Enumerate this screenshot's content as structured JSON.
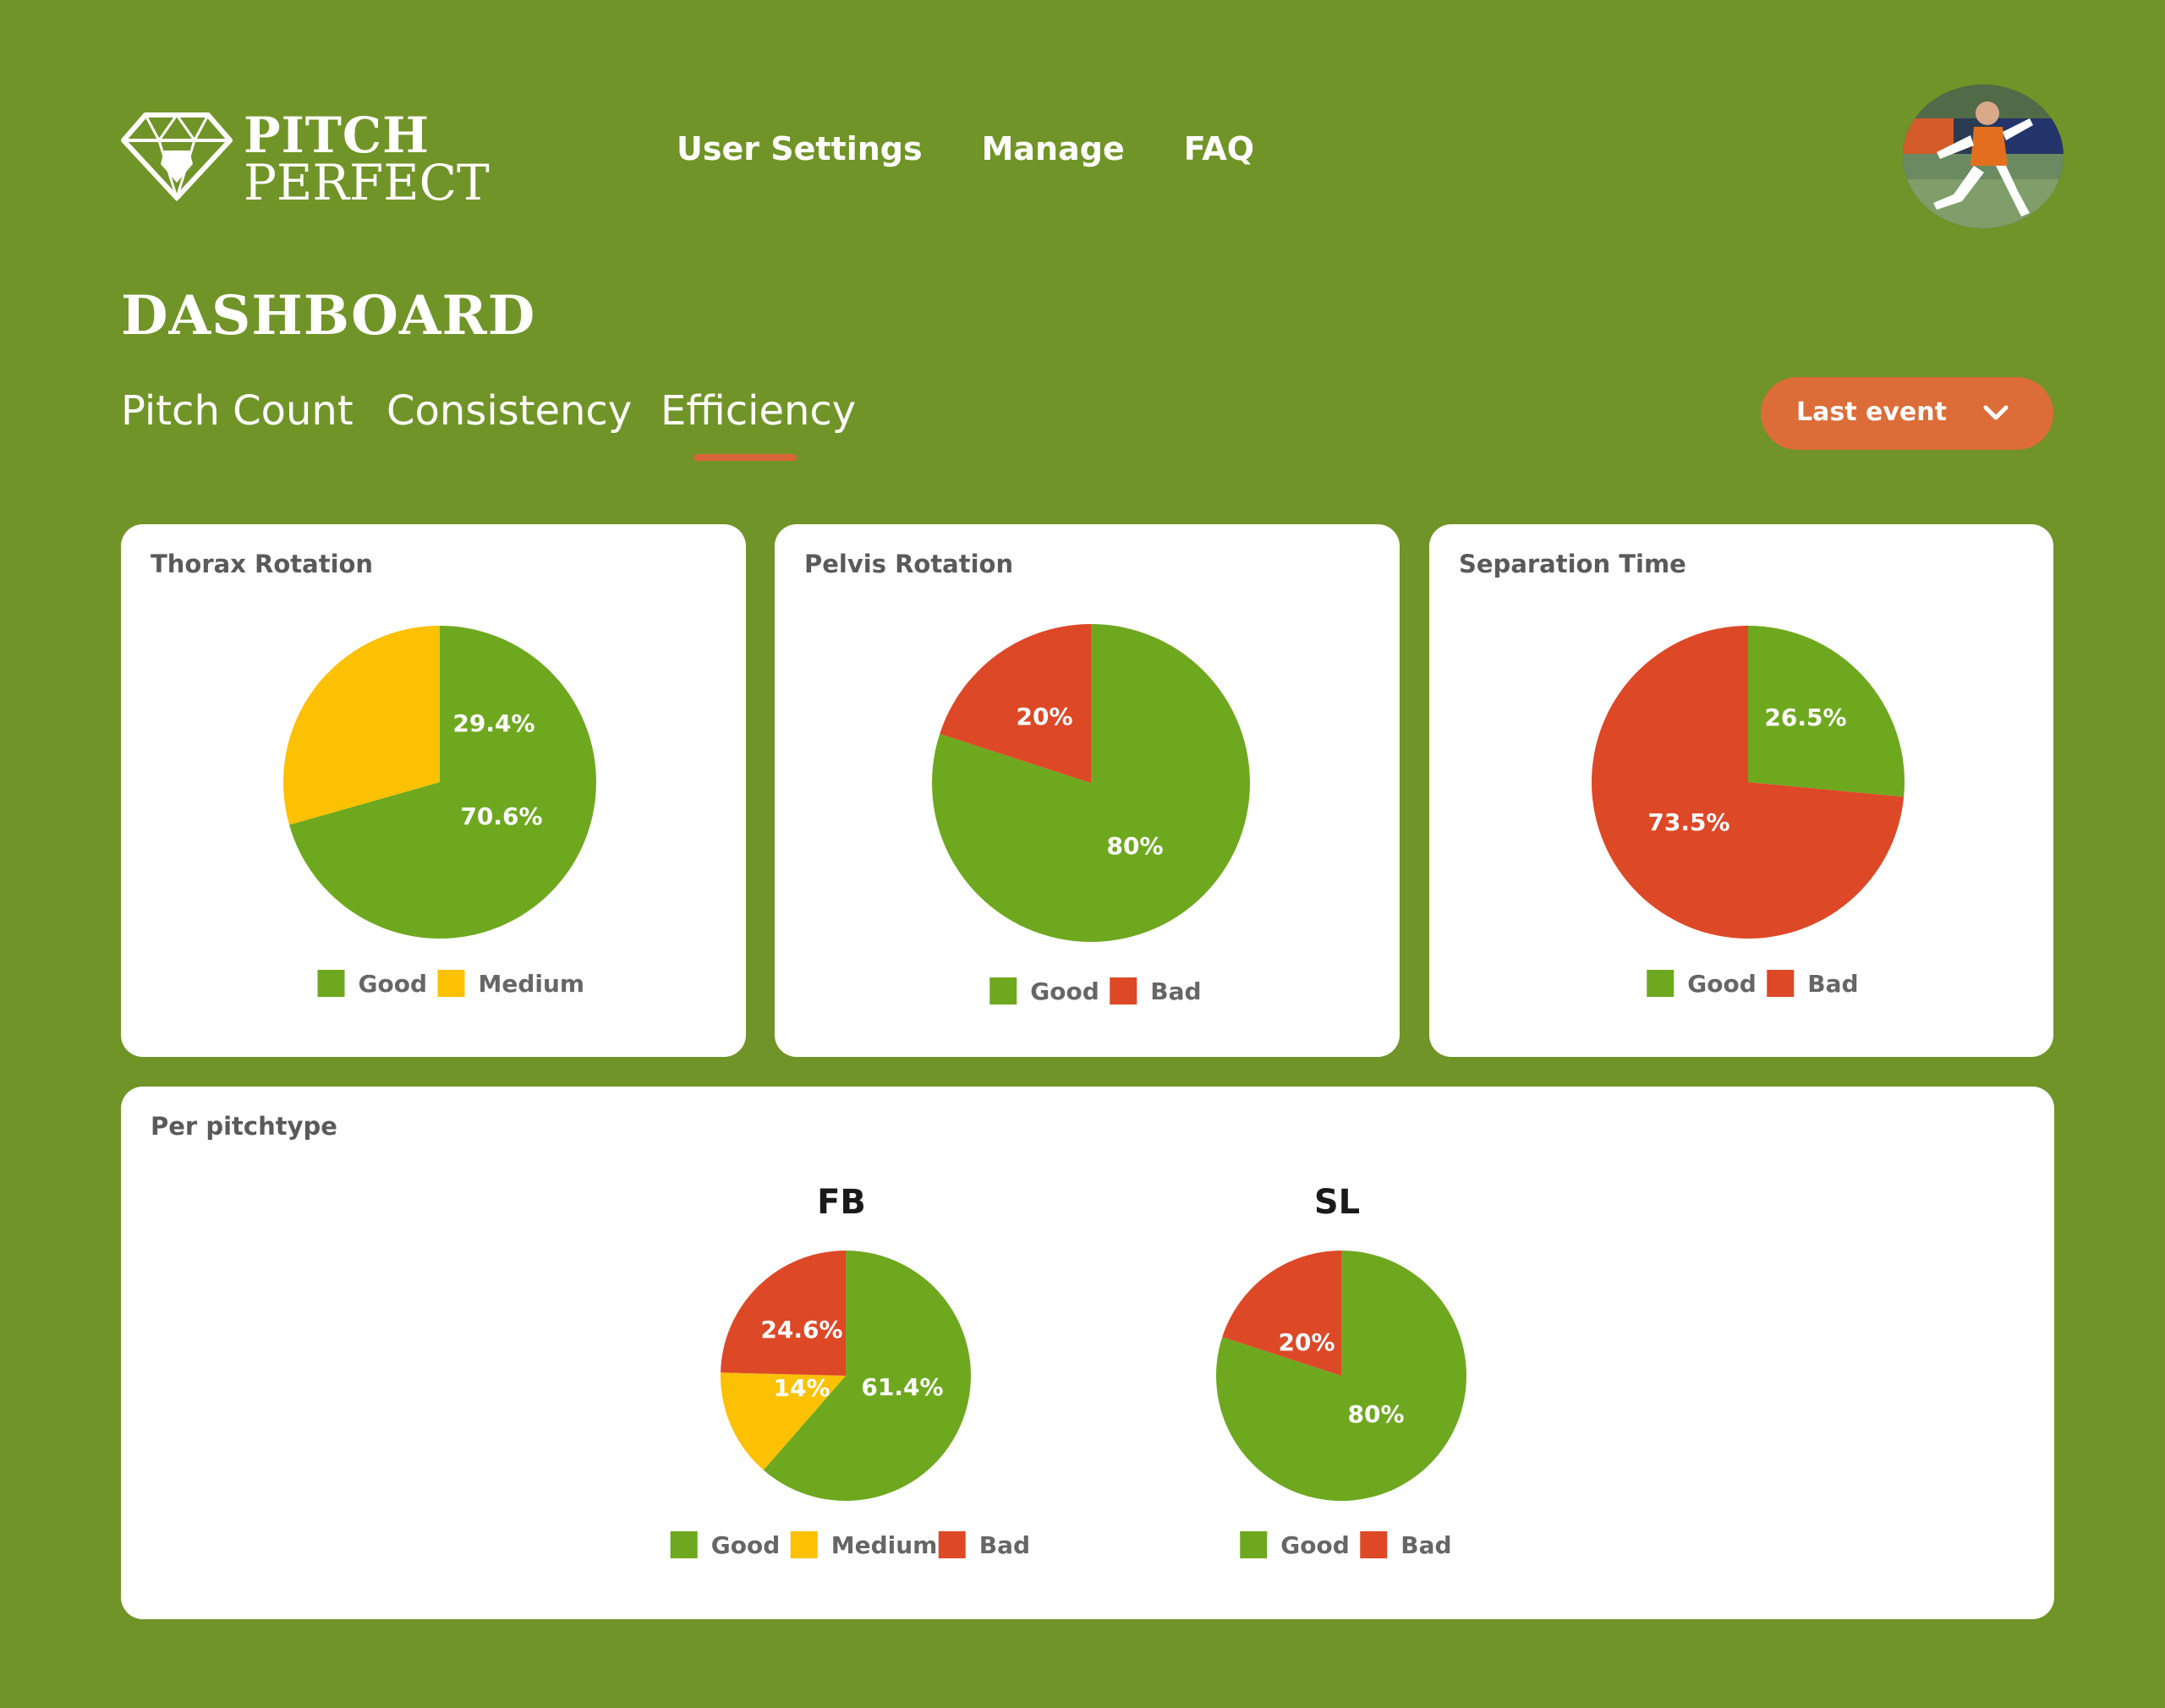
{
  "brand": {
    "word1": "PITCH",
    "word2": "PERFECT"
  },
  "nav": [
    "User Settings",
    "Manage",
    "FAQ"
  ],
  "page_title": "DASHBOARD",
  "tabs": [
    {
      "label": "Pitch Count",
      "active": false
    },
    {
      "label": "Consistency",
      "active": false
    },
    {
      "label": "Efficiency",
      "active": true
    }
  ],
  "event_dropdown": {
    "selected": "Last event"
  },
  "colors": {
    "background": "#719428",
    "good": "#6ea81f",
    "medium": "#fcc102",
    "bad": "#dd4827",
    "accent": "#dc6c38"
  },
  "cards": {
    "thorax": "Thorax Rotation",
    "pelvis": "Pelvis Rotation",
    "separation": "Separation Time",
    "per_pitchtype": "Per pitchtype"
  },
  "chart_data": [
    {
      "type": "pie",
      "title": "Thorax Rotation",
      "slices": [
        {
          "name": "Good",
          "value": 70.6,
          "label": "70.6%"
        },
        {
          "name": "Medium",
          "value": 29.4,
          "label": "29.4%"
        }
      ],
      "legend": [
        "Good",
        "Medium"
      ],
      "legend_placement": "bottom"
    },
    {
      "type": "pie",
      "title": "Pelvis Rotation",
      "slices": [
        {
          "name": "Good",
          "value": 80,
          "label": "80%"
        },
        {
          "name": "Bad",
          "value": 20,
          "label": "20%"
        }
      ],
      "legend": [
        "Good",
        "Bad"
      ],
      "legend_placement": "bottom"
    },
    {
      "type": "pie",
      "title": "Separation Time",
      "slices": [
        {
          "name": "Good",
          "value": 26.5,
          "label": "26.5%"
        },
        {
          "name": "Bad",
          "value": 73.5,
          "label": "73.5%"
        }
      ],
      "legend": [
        "Good",
        "Bad"
      ],
      "legend_placement": "bottom"
    },
    {
      "type": "pie",
      "title": "FB",
      "slices": [
        {
          "name": "Good",
          "value": 61.4,
          "label": "61.4%"
        },
        {
          "name": "Medium",
          "value": 14,
          "label": "14%"
        },
        {
          "name": "Bad",
          "value": 24.6,
          "label": "24.6%"
        }
      ],
      "legend": [
        "Good",
        "Medium",
        "Bad"
      ],
      "legend_placement": "bottom"
    },
    {
      "type": "pie",
      "title": "SL",
      "slices": [
        {
          "name": "Good",
          "value": 80,
          "label": "80%"
        },
        {
          "name": "Bad",
          "value": 20,
          "label": "20%"
        }
      ],
      "legend": [
        "Good",
        "Bad"
      ],
      "legend_placement": "bottom"
    }
  ]
}
